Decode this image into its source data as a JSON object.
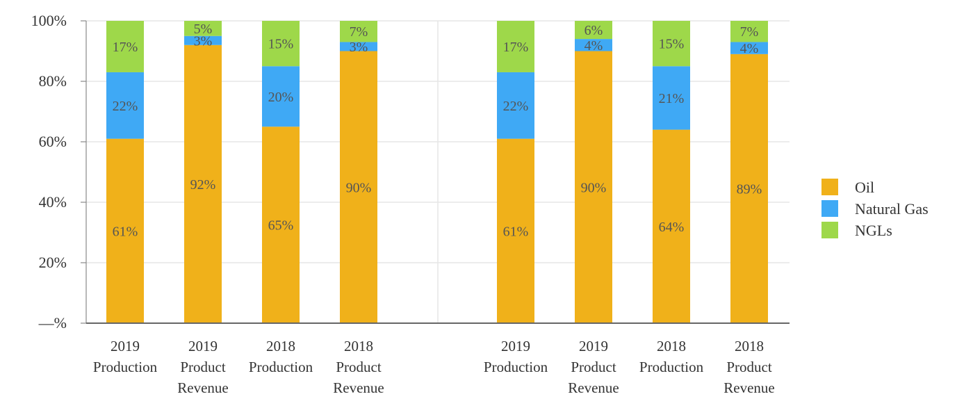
{
  "chart_data": {
    "type": "bar",
    "stacked": true,
    "y_ticks": [
      "—%",
      "20%",
      "40%",
      "60%",
      "80%",
      "100%"
    ],
    "ylim": [
      0,
      100
    ],
    "grid": true,
    "legend_position": "right",
    "colors": {
      "Oil": "#F0B11A",
      "Natural Gas": "#3FA9F5",
      "NGLs": "#9ED84A"
    },
    "legend": [
      "Oil",
      "Natural Gas",
      "NGLs"
    ],
    "panels": [
      {
        "categories": [
          [
            "2019",
            "Production"
          ],
          [
            "2019",
            "Product",
            "Revenue"
          ],
          [
            "2018",
            "Production"
          ],
          [
            "2018",
            "Product",
            "Revenue"
          ]
        ],
        "series": [
          {
            "name": "Oil",
            "values": [
              61,
              92,
              65,
              90
            ],
            "labels": [
              "61%",
              "92%",
              "65%",
              "90%"
            ]
          },
          {
            "name": "Natural Gas",
            "values": [
              22,
              3,
              20,
              3
            ],
            "labels": [
              "22%",
              "3%",
              "20%",
              "3%"
            ]
          },
          {
            "name": "NGLs",
            "values": [
              17,
              5,
              15,
              7
            ],
            "labels": [
              "17%",
              "5%",
              "15%",
              "7%"
            ]
          }
        ]
      },
      {
        "categories": [
          [
            "2019",
            "Production"
          ],
          [
            "2019",
            "Product",
            "Revenue"
          ],
          [
            "2018",
            "Production"
          ],
          [
            "2018",
            "Product",
            "Revenue"
          ]
        ],
        "series": [
          {
            "name": "Oil",
            "values": [
              61,
              90,
              64,
              89
            ],
            "labels": [
              "61%",
              "90%",
              "64%",
              "89%"
            ]
          },
          {
            "name": "Natural Gas",
            "values": [
              22,
              4,
              21,
              4
            ],
            "labels": [
              "22%",
              "4%",
              "21%",
              "4%"
            ]
          },
          {
            "name": "NGLs",
            "values": [
              17,
              6,
              15,
              7
            ],
            "labels": [
              "17%",
              "6%",
              "15%",
              "7%"
            ]
          }
        ]
      }
    ]
  }
}
